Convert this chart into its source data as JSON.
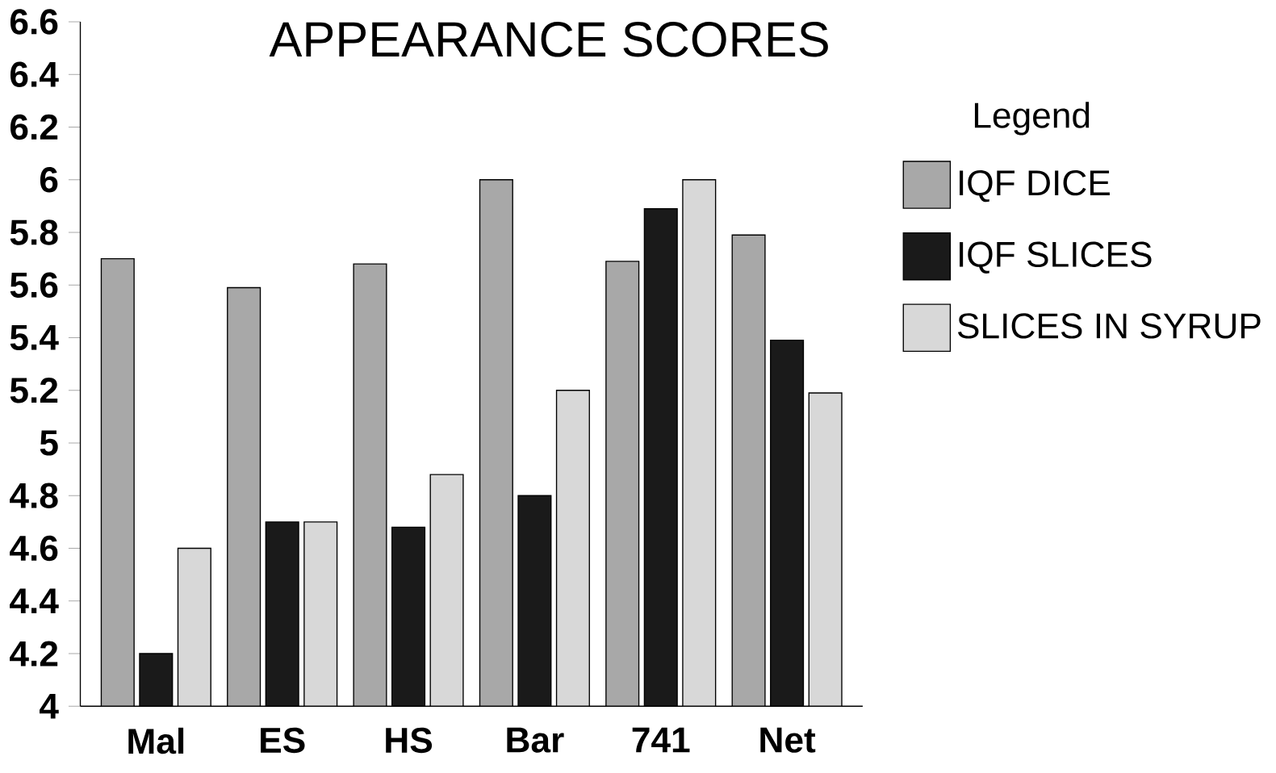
{
  "chart_data": {
    "type": "bar",
    "title": "APPEARANCE SCORES",
    "categories": [
      "Mal",
      "ES",
      "HS",
      "Bar",
      "741",
      "Net"
    ],
    "series": [
      {
        "name": "IQF DICE",
        "color": "#a8a8a8",
        "values": [
          5.7,
          5.59,
          5.68,
          6.0,
          5.69,
          5.79
        ]
      },
      {
        "name": "IQF SLICES",
        "color": "#1a1a1a",
        "values": [
          4.2,
          4.7,
          4.68,
          4.8,
          5.89,
          5.39
        ]
      },
      {
        "name": "SLICES IN SYRUP",
        "color": "#d8d8d8",
        "values": [
          4.6,
          4.7,
          4.88,
          5.2,
          6.0,
          5.19
        ]
      }
    ],
    "ylim": [
      4,
      6.6
    ],
    "yticks": [
      4,
      4.2,
      4.4,
      4.6,
      4.8,
      5,
      5.2,
      5.4,
      5.6,
      5.8,
      6,
      6.2,
      6.4,
      6.6
    ],
    "legend": "right",
    "legend_title": "Legend",
    "grid": false
  }
}
